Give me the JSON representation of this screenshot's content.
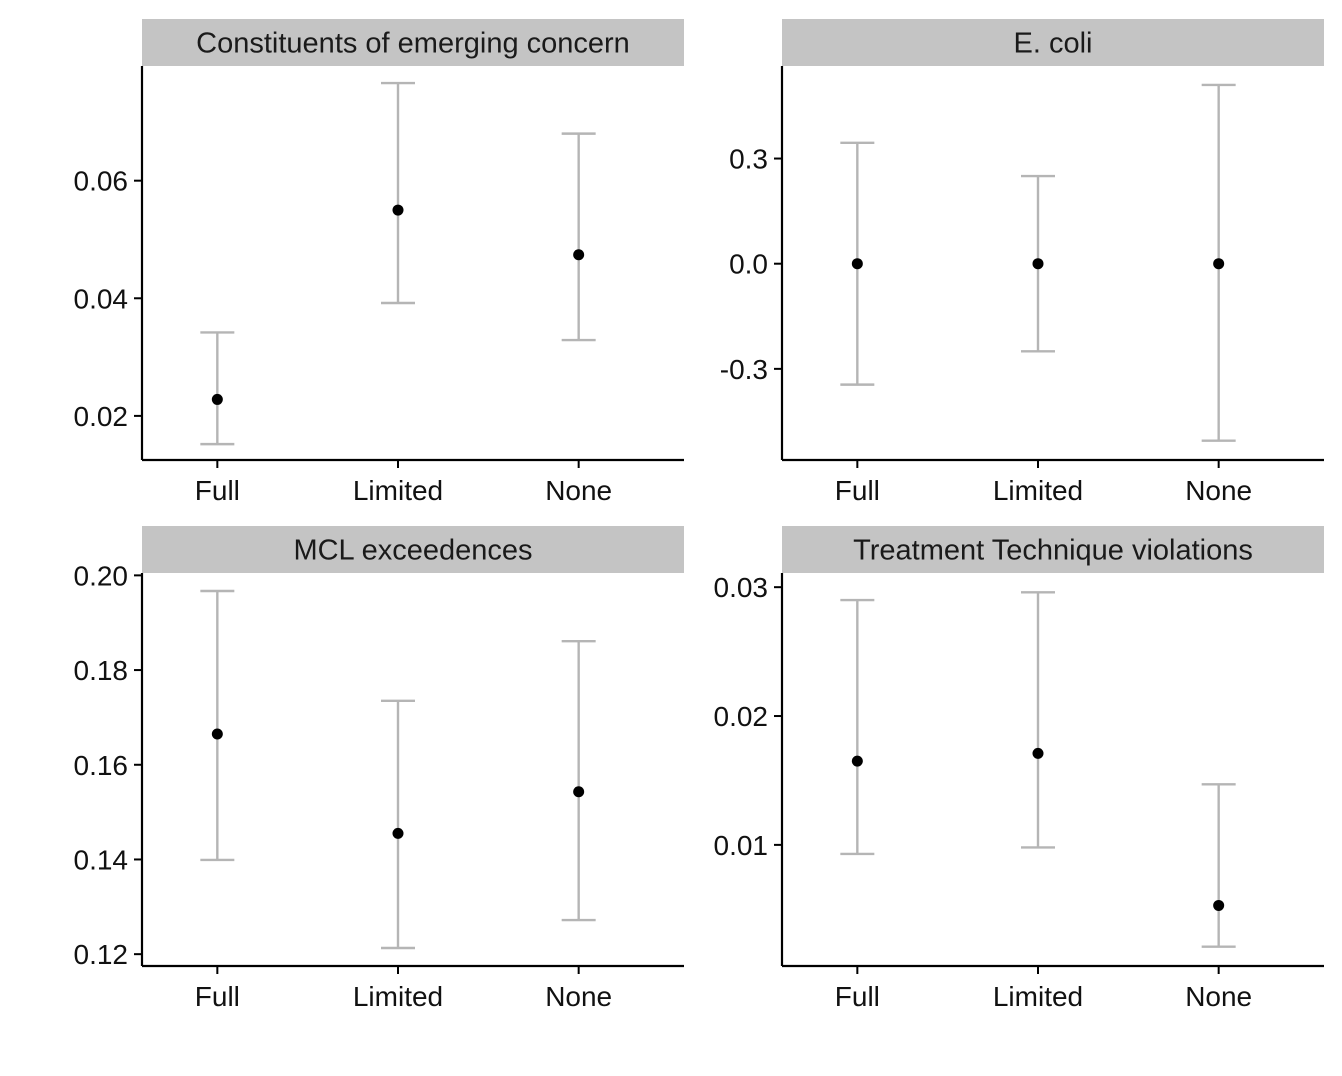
{
  "chart_data": [
    {
      "type": "scatter",
      "title": "Constituents of emerging concern",
      "categories": [
        "Full",
        "Limited",
        "None"
      ],
      "estimates": [
        0.0228,
        0.055,
        0.0474
      ],
      "lower": [
        0.0152,
        0.0392,
        0.0329
      ],
      "upper": [
        0.0342,
        0.0766,
        0.068
      ],
      "yticks": [
        0.02,
        0.04,
        0.06
      ],
      "ytick_labels": [
        "0.02",
        "0.04",
        "0.06"
      ],
      "ylim": [
        0.0125,
        0.0795
      ],
      "xlabel": "",
      "ylabel": ""
    },
    {
      "type": "scatter",
      "title": "E. coli",
      "categories": [
        "Full",
        "Limited",
        "None"
      ],
      "estimates": [
        0.0,
        0.0,
        0.0
      ],
      "lower": [
        -0.345,
        -0.25,
        -0.505
      ],
      "upper": [
        0.345,
        0.25,
        0.51
      ],
      "yticks": [
        0.3,
        0.0,
        -0.3
      ],
      "ytick_labels": [
        "0.3",
        "0.0",
        "-0.3"
      ],
      "ylim": [
        -0.56,
        0.564
      ],
      "xlabel": "",
      "ylabel": ""
    },
    {
      "type": "scatter",
      "title": "MCL exceedences",
      "categories": [
        "Full",
        "Limited",
        "None"
      ],
      "estimates": [
        0.1665,
        0.1455,
        0.1543
      ],
      "lower": [
        0.1399,
        0.1213,
        0.1272
      ],
      "upper": [
        0.1967,
        0.1735,
        0.1861
      ],
      "yticks": [
        0.2,
        0.18,
        0.16,
        0.14,
        0.12
      ],
      "ytick_labels": [
        "0.20",
        "0.18",
        "0.16",
        "0.14",
        "0.12"
      ],
      "ylim": [
        0.1175,
        0.2005
      ],
      "xlabel": "",
      "ylabel": ""
    },
    {
      "type": "scatter",
      "title": "Treatment Technique violations",
      "categories": [
        "Full",
        "Limited",
        "None"
      ],
      "estimates": [
        0.0165,
        0.0171,
        0.0053
      ],
      "lower": [
        0.0093,
        0.0098,
        0.0021
      ],
      "upper": [
        0.029,
        0.0296,
        0.0147
      ],
      "yticks": [
        0.03,
        0.02,
        0.01
      ],
      "ytick_labels": [
        "0.03",
        "0.02",
        "0.01"
      ],
      "ylim": [
        0.0006,
        0.0311
      ],
      "xlabel": "",
      "ylabel": ""
    }
  ],
  "colors": {
    "point": "#000000",
    "errorbar": "#b5b5b5",
    "strip": "#c4c4c4",
    "axis": "#000000"
  }
}
